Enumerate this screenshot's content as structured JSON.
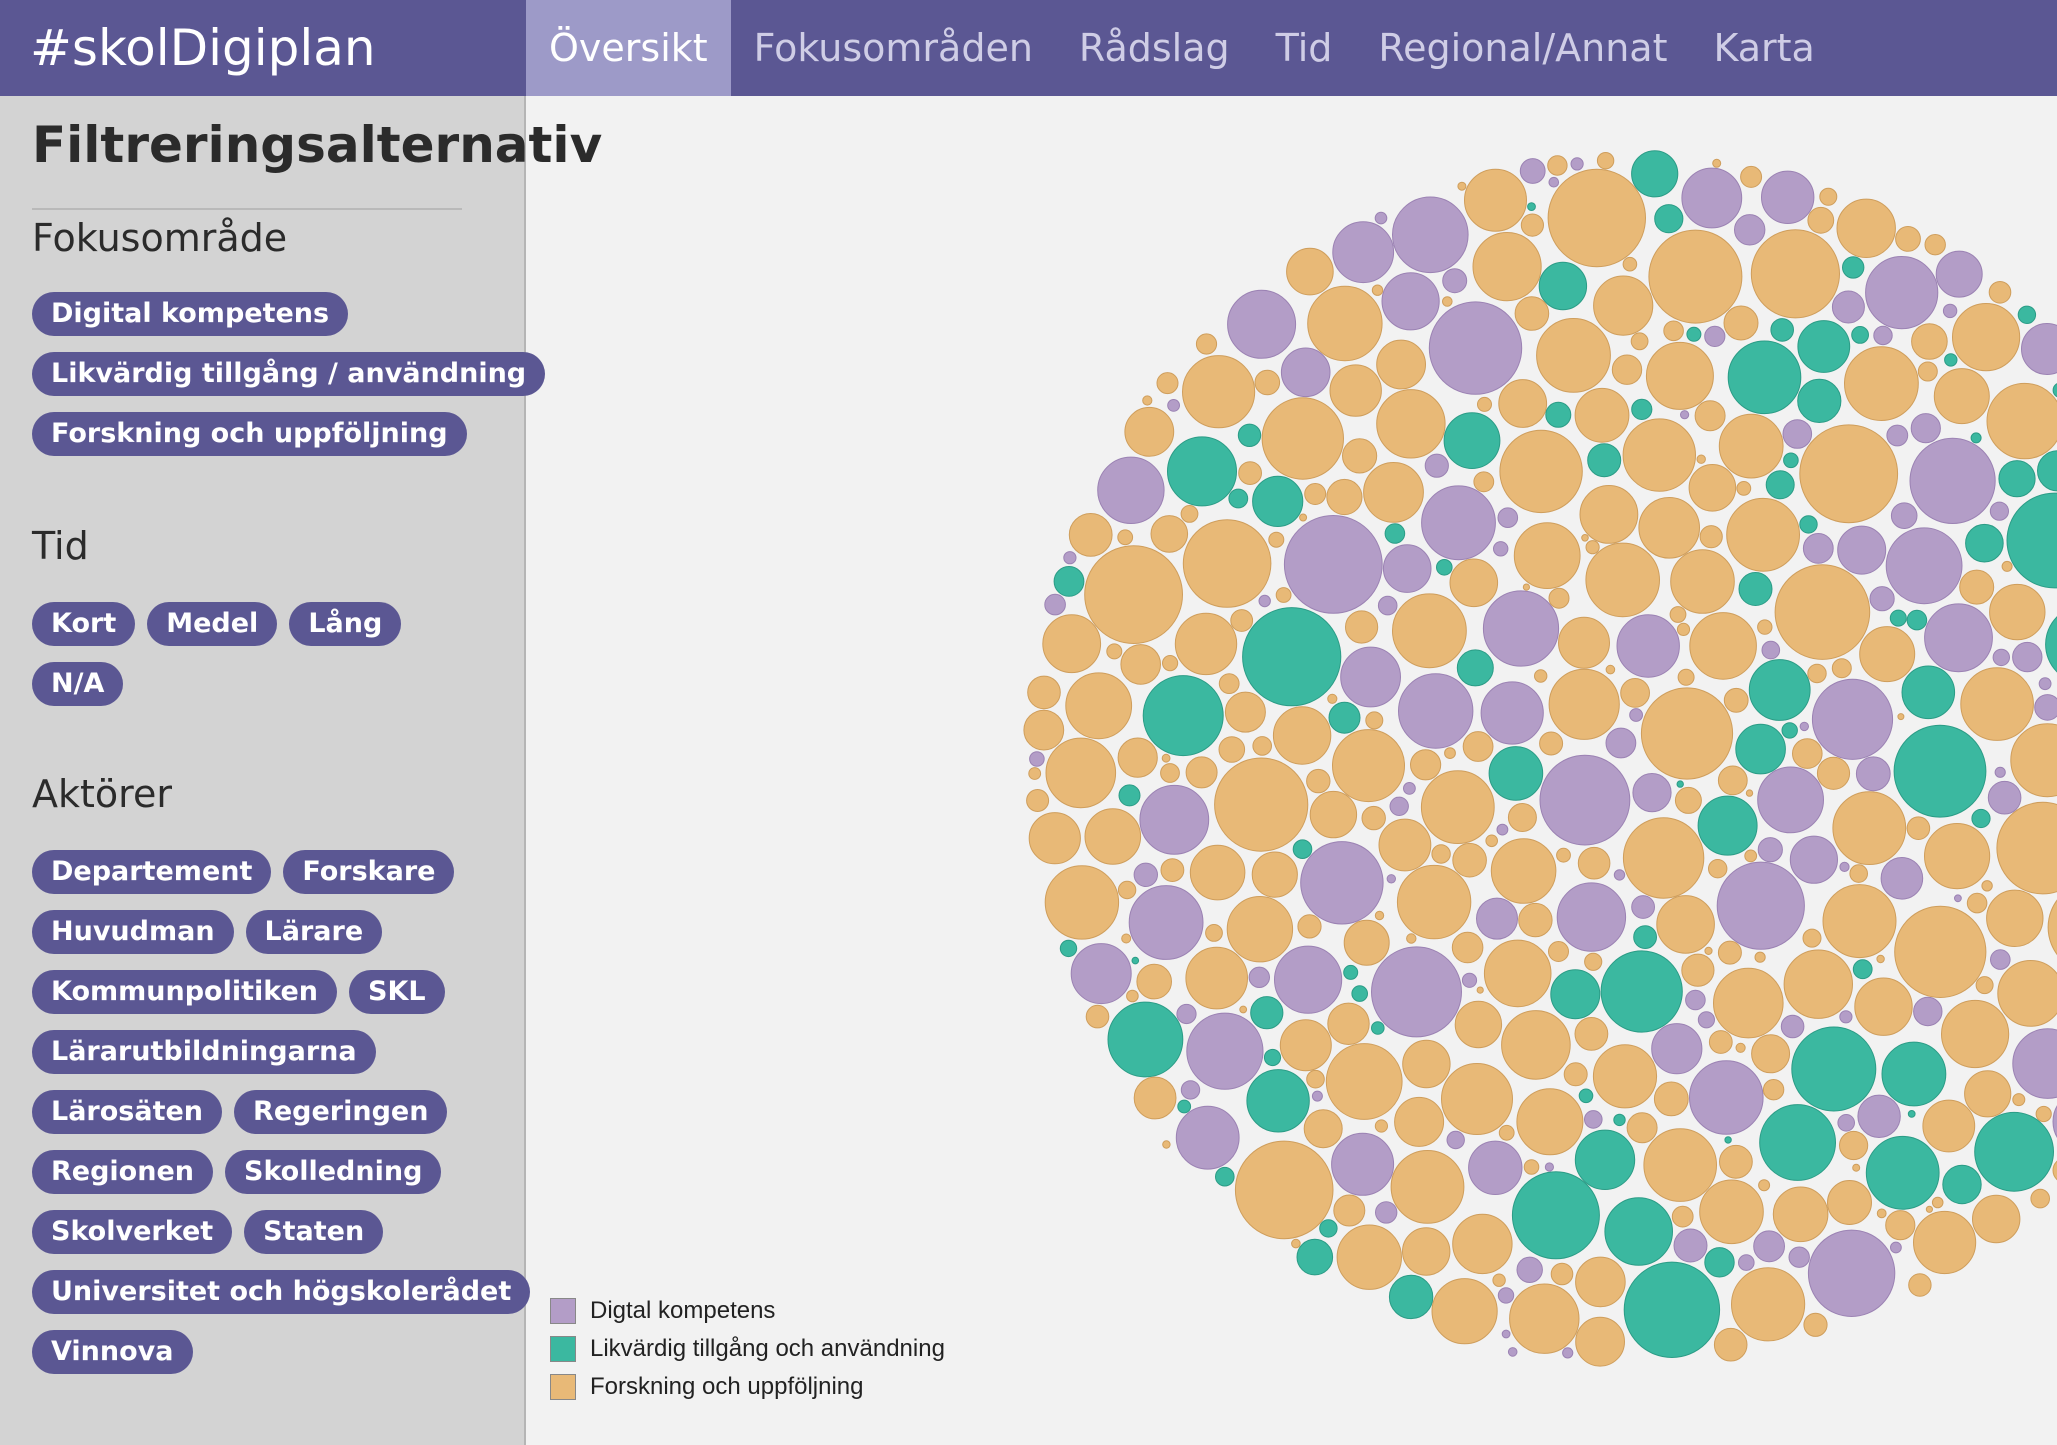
{
  "header": {
    "brand": "#skolDigiplan",
    "tabs": [
      {
        "label": "Översikt",
        "active": true
      },
      {
        "label": "Fokusområden",
        "active": false
      },
      {
        "label": "Rådslag",
        "active": false
      },
      {
        "label": "Tid",
        "active": false
      },
      {
        "label": "Regional/Annat",
        "active": false
      },
      {
        "label": "Karta",
        "active": false
      }
    ]
  },
  "sidebar": {
    "title": "Filtreringsalternativ",
    "sections": {
      "fokus": {
        "heading": "Fokusområde",
        "chips": [
          "Digital kompetens",
          "Likvärdig tillgång / användning",
          "Forskning och uppföljning"
        ]
      },
      "tid": {
        "heading": "Tid",
        "chips": [
          "Kort",
          "Medel",
          "Lång",
          "N/A"
        ]
      },
      "aktorer": {
        "heading": "Aktörer",
        "chips": [
          "Departement",
          "Forskare",
          "Huvudman",
          "Lärare",
          "Kommunpolitiken",
          "SKL",
          "Lärarutbildningarna",
          "Lärosäten",
          "Regeringen",
          "Regionen",
          "Skolledning",
          "Skolverket",
          "Staten",
          "Universitet och högskolerådet",
          "Vinnova"
        ]
      }
    }
  },
  "legend": [
    {
      "label": "Digtal kompetens",
      "color": "#b39dc7"
    },
    {
      "label": "Likvärdig tillgång och användning",
      "color": "#3bb8a0"
    },
    {
      "label": "Forskning och uppföljning",
      "color": "#e8b977"
    }
  ],
  "colors": {
    "header_bg": "#5b5793",
    "active_tab_bg": "#9d9ac8",
    "sidebar_bg": "#d3d3d3",
    "chip_bg": "#5b5793"
  }
}
